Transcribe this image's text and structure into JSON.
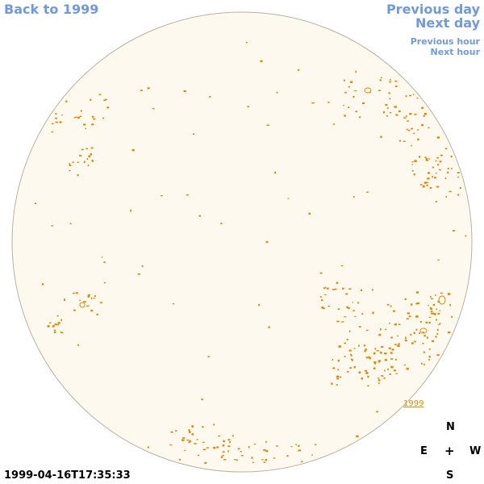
{
  "nav": {
    "back": "Back to 1999",
    "previous_day": "Previous day",
    "next_day": "Next day",
    "previous_hour": "Previous hour",
    "next_hour": "Next hour"
  },
  "compass": {
    "north": "N",
    "east": "E",
    "center": "+",
    "west": "W",
    "south": "S"
  },
  "timestamp": "1999-04-16T17:35:33",
  "region_label": "1999",
  "colors": {
    "link": "#6d9ae3",
    "disk_fill": "#fdf9ef",
    "disk_stroke": "#b9b2a2",
    "feature": "#e08a00"
  }
}
